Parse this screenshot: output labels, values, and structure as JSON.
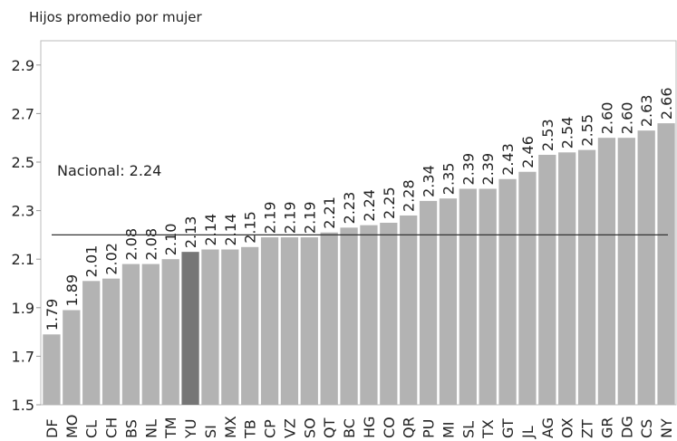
{
  "chart_data": {
    "type": "bar",
    "title": "Hijos promedio por mujer",
    "annotation": "Nacional: 2.24",
    "reference_line": 2.2,
    "categories": [
      "DF",
      "MO",
      "CL",
      "CH",
      "BS",
      "NL",
      "TM",
      "YU",
      "SI",
      "MX",
      "TB",
      "CP",
      "VZ",
      "SO",
      "QT",
      "BC",
      "HG",
      "CO",
      "QR",
      "PU",
      "MI",
      "SL",
      "TX",
      "GT",
      "JL",
      "AG",
      "OX",
      "ZT",
      "GR",
      "DG",
      "CS",
      "NY"
    ],
    "values": [
      1.79,
      1.89,
      2.01,
      2.02,
      2.08,
      2.08,
      2.1,
      2.13,
      2.14,
      2.14,
      2.15,
      2.19,
      2.19,
      2.19,
      2.21,
      2.23,
      2.24,
      2.25,
      2.28,
      2.34,
      2.35,
      2.39,
      2.39,
      2.43,
      2.46,
      2.53,
      2.54,
      2.55,
      2.6,
      2.6,
      2.63,
      2.66
    ],
    "value_labels": [
      "1.79",
      "1.89",
      "2.01",
      "2.02",
      "2.08",
      "2.08",
      "2.10",
      "2.13",
      "2.14",
      "2.14",
      "2.15",
      "2.19",
      "2.19",
      "2.19",
      "2.21",
      "2.23",
      "2.24",
      "2.25",
      "2.28",
      "2.34",
      "2.35",
      "2.39",
      "2.39",
      "2.43",
      "2.46",
      "2.53",
      "2.54",
      "2.55",
      "2.60",
      "2.60",
      "2.63",
      "2.66"
    ],
    "colors": [
      "#b3b3b3",
      "#b3b3b3",
      "#b3b3b3",
      "#b3b3b3",
      "#b3b3b3",
      "#b3b3b3",
      "#b3b3b3",
      "#767676",
      "#b3b3b3",
      "#b3b3b3",
      "#b3b3b3",
      "#b3b3b3",
      "#b3b3b3",
      "#b3b3b3",
      "#b3b3b3",
      "#b3b3b3",
      "#b3b3b3",
      "#b3b3b3",
      "#b3b3b3",
      "#b3b3b3",
      "#b3b3b3",
      "#b3b3b3",
      "#b3b3b3",
      "#b3b3b3",
      "#b3b3b3",
      "#b3b3b3",
      "#b3b3b3",
      "#b3b3b3",
      "#b3b3b3",
      "#b3b3b3",
      "#b3b3b3",
      "#b3b3b3"
    ],
    "ylim": [
      1.5,
      3.0
    ],
    "yticks": [
      1.5,
      1.7,
      1.9,
      2.1,
      2.3,
      2.5,
      2.7,
      2.9
    ]
  }
}
